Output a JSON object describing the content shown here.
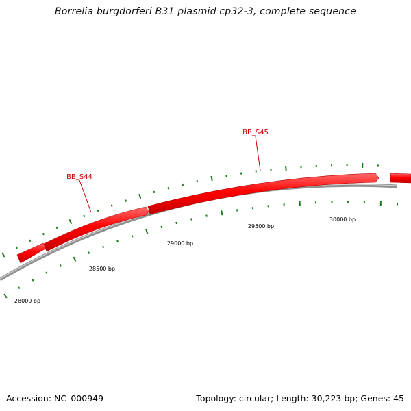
{
  "title": "Borrelia burgdorferi B31 plasmid cp32-3, complete sequence",
  "genes": [
    {
      "label": "BB_S44"
    },
    {
      "label": "BB_S45"
    }
  ],
  "scale_labels": [
    "28000 bp",
    "28500 bp",
    "29000 bp",
    "29500 bp",
    "30000 bp"
  ],
  "footer": {
    "accession": "Accession: NC_000949",
    "stats": "Topology: circular; Length: 30,223 bp; Genes: 45"
  },
  "colors": {
    "gene": "#ff0000",
    "gene_label": "#cc0000",
    "backbone": "#808080",
    "tick": "#1a7a1a"
  }
}
